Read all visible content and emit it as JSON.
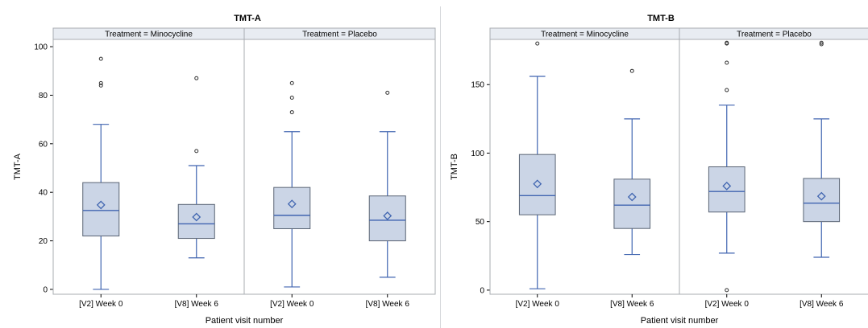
{
  "chart_data": [
    {
      "type": "boxplot",
      "title": "TMT-A",
      "xlabel": "Patient visit number",
      "ylabel": "TMT-A",
      "ylim": [
        -2,
        103
      ],
      "yticks": [
        0,
        20,
        40,
        60,
        80,
        100
      ],
      "categories": [
        "[V2] Week 0",
        "[V8] Week 6"
      ],
      "panels": [
        {
          "label": "Treatment = Minocycline",
          "boxes": [
            {
              "category": "[V2] Week 0",
              "min": 0,
              "q1": 22,
              "median": 32.5,
              "q3": 44,
              "max": 68,
              "mean": 34.8,
              "outliers": [
                84,
                85,
                95
              ]
            },
            {
              "category": "[V8] Week 6",
              "min": 13,
              "q1": 21,
              "median": 27,
              "q3": 35,
              "max": 51,
              "mean": 29.8,
              "outliers": [
                57,
                87
              ]
            }
          ]
        },
        {
          "label": "Treatment = Placebo",
          "boxes": [
            {
              "category": "[V2] Week 0",
              "min": 1,
              "q1": 25,
              "median": 30.5,
              "q3": 42,
              "max": 65,
              "mean": 35.2,
              "outliers": [
                73,
                79,
                85
              ]
            },
            {
              "category": "[V8] Week 6",
              "min": 5,
              "q1": 20,
              "median": 28.5,
              "q3": 38.5,
              "max": 65,
              "mean": 30.3,
              "outliers": [
                81
              ]
            }
          ]
        }
      ]
    },
    {
      "type": "boxplot",
      "title": "TMT-B",
      "xlabel": "Patient visit number",
      "ylabel": "TMT-B",
      "ylim": [
        -3,
        183
      ],
      "yticks": [
        0,
        50,
        100,
        150
      ],
      "categories": [
        "[V2] Week 0",
        "[V8] Week 6"
      ],
      "panels": [
        {
          "label": "Treatment = Minocycline",
          "boxes": [
            {
              "category": "[V2] Week 0",
              "min": 1,
              "q1": 55,
              "median": 69,
              "q3": 99,
              "max": 156,
              "mean": 77.5,
              "outliers": [
                180
              ]
            },
            {
              "category": "[V8] Week 6",
              "min": 26,
              "q1": 45,
              "median": 62,
              "q3": 81,
              "max": 125,
              "mean": 68,
              "outliers": [
                160
              ]
            }
          ]
        },
        {
          "label": "Treatment = Placebo",
          "boxes": [
            {
              "category": "[V2] Week 0",
              "min": 27,
              "q1": 57,
              "median": 72,
              "q3": 90,
              "max": 135,
              "mean": 76,
              "outliers": [
                0,
                146,
                166,
                180,
                180.5
              ]
            },
            {
              "category": "[V8] Week 6",
              "min": 24,
              "q1": 50,
              "median": 63.5,
              "q3": 81.5,
              "max": 125,
              "mean": 68.5,
              "outliers": [
                179.5,
                180.5
              ]
            }
          ]
        }
      ]
    }
  ],
  "colors": {
    "box_fill": "#cbd5e6",
    "box_edge": "#5a6474",
    "line": "#4065b0",
    "header_bg": "#e8ecf2",
    "frame": "#a8acb2",
    "outlier": "#333333"
  }
}
